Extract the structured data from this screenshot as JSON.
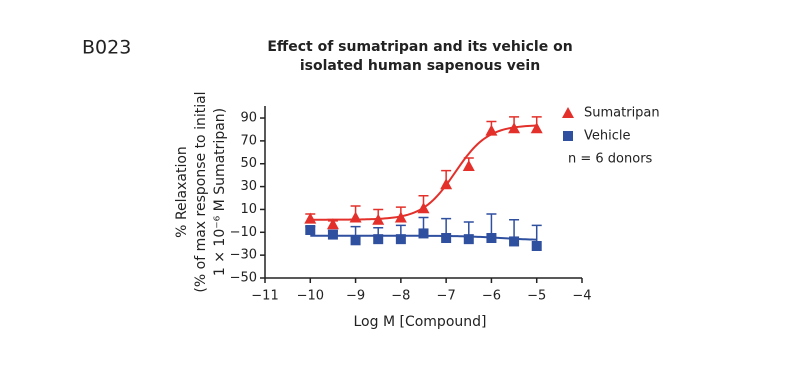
{
  "panel_label": "B023",
  "chart_data": {
    "type": "dose-response",
    "title": [
      "Effect of sumatripan and its vehicle on",
      "isolated human sapenous vein"
    ],
    "x_label": "Log M [Compound]",
    "y_label": [
      "% Relaxation",
      "(% of max response to initial",
      "1 × 10⁻⁶ M Sumatripan)"
    ],
    "xlim": [
      -11,
      -4
    ],
    "xticks": [
      {
        "value": -11,
        "label": "−11"
      },
      {
        "value": -10,
        "label": "−10"
      },
      {
        "value": -9,
        "label": "−9"
      },
      {
        "value": -8,
        "label": "−8"
      },
      {
        "value": -7,
        "label": "−7"
      },
      {
        "value": -6,
        "label": "−6"
      },
      {
        "value": -5,
        "label": "−5"
      },
      {
        "value": -4,
        "label": "−4"
      }
    ],
    "ylim": [
      -50,
      100
    ],
    "yticks": [
      {
        "value": -50,
        "label": "−50"
      },
      {
        "value": -30,
        "label": "−30"
      },
      {
        "value": -10,
        "label": "−10"
      },
      10,
      30,
      50,
      70,
      90
    ],
    "annotation": "n = 6 donors",
    "series": [
      {
        "name": "Sumatripan",
        "color": "#e3302a",
        "marker": "triangle",
        "x": [
          -10,
          -9.5,
          -9,
          -8.5,
          -8,
          -7.5,
          -7,
          -6.5,
          -6,
          -5.5,
          -5
        ],
        "values": [
          2,
          -3,
          3,
          1,
          3,
          11,
          32,
          48,
          79,
          81,
          81
        ],
        "errors": [
          4,
          3,
          10,
          9,
          9,
          11,
          12,
          7,
          8,
          10,
          10
        ],
        "fit": {
          "bottom": 1,
          "top": 84,
          "log_ec50": -6.8,
          "hill": 1.2
        }
      },
      {
        "name": "Vehicle",
        "color": "#2f4f9f",
        "marker": "square",
        "x": [
          -10,
          -9.5,
          -9,
          -8.5,
          -8,
          -7.5,
          -7,
          -6.5,
          -6,
          -5.5,
          -5
        ],
        "values": [
          -8,
          -12,
          -17,
          -16,
          -16,
          -11,
          -15,
          -16,
          -15,
          -18,
          -22
        ],
        "errors": [
          3,
          3,
          12,
          10,
          12,
          14,
          17,
          15,
          21,
          19,
          18
        ],
        "fit": {
          "bottom": -13,
          "top": -17,
          "log_ec50": -5.8,
          "hill": 1
        }
      }
    ]
  }
}
